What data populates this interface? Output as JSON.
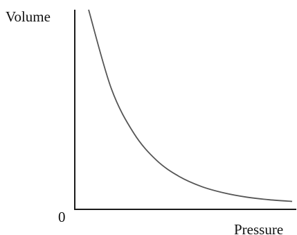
{
  "chart_data": {
    "type": "line",
    "title": "",
    "xlabel": "Pressure",
    "ylabel": "Volume",
    "origin_label": "0",
    "grid": false,
    "legend": "none",
    "colors": {
      "axis": "#1a1a1a",
      "curve": "#555555",
      "text": "#111111"
    },
    "series": [
      {
        "x": [
          0.1,
          0.2,
          0.3,
          0.4,
          0.5,
          0.6,
          0.7,
          0.8,
          0.9,
          1.0
        ],
        "y": [
          1.0,
          0.606,
          0.381,
          0.246,
          0.165,
          0.114,
          0.082,
          0.061,
          0.048,
          0.04
        ]
      }
    ]
  }
}
